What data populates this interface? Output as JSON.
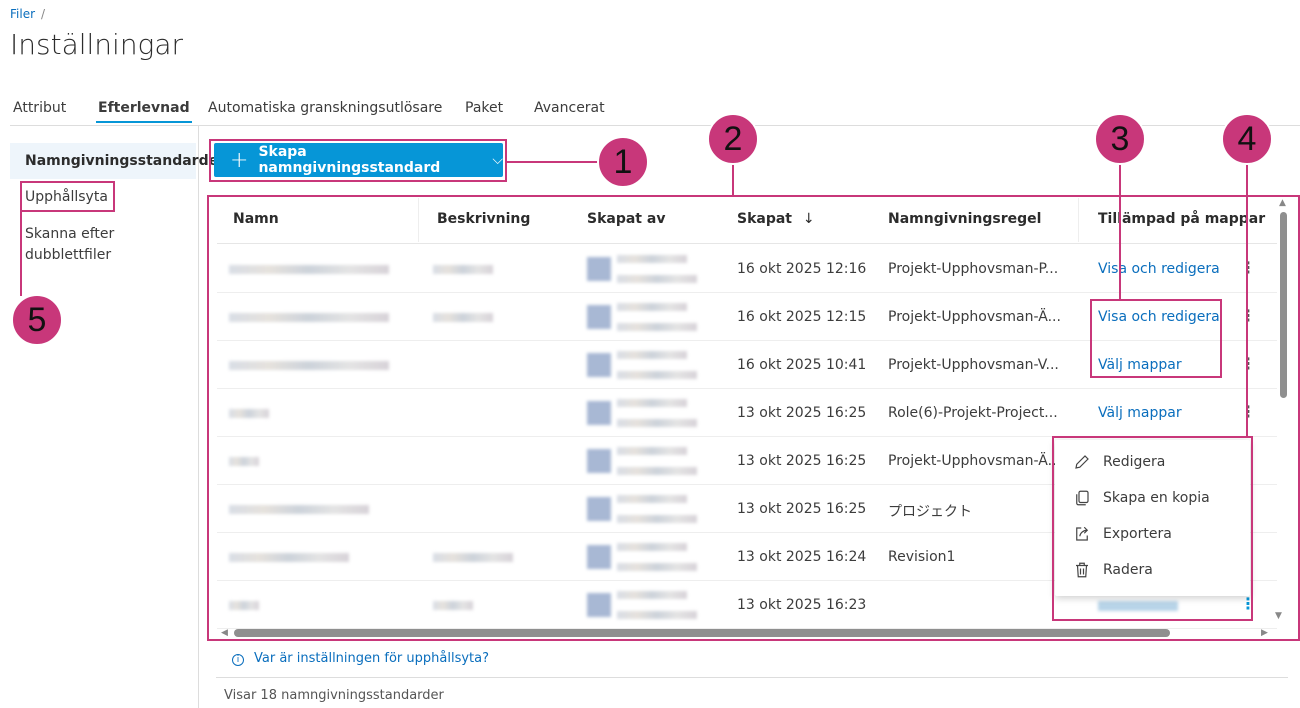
{
  "breadcrumb": {
    "root": "Filer",
    "sep": "/"
  },
  "title": "Inställningar",
  "tabs": [
    {
      "label": "Attribut"
    },
    {
      "label": "Efterlevnad",
      "active": true
    },
    {
      "label": "Automatiska granskningsutlösare"
    },
    {
      "label": "Paket"
    },
    {
      "label": "Avancerat"
    }
  ],
  "sidebar": {
    "items": [
      {
        "label": "Namngivningsstandarder",
        "active": true
      },
      {
        "label": "Upphållsyta"
      },
      {
        "label": "Skanna efter dubblettfiler"
      }
    ]
  },
  "create_button": {
    "label": "Skapa namngivningsstandard",
    "icon": "plus-icon",
    "chevron": "chevron-down-icon"
  },
  "table": {
    "columns": [
      "Namn",
      "Beskrivning",
      "Skapat av",
      "Skapat",
      "Namngivningsregel",
      "Tillämpad på mappar"
    ],
    "sort_indicator": "↓",
    "rows": [
      {
        "created": "16 okt 2025 12:16",
        "rule": "Projekt-Upphovsman-P...",
        "applied": "Visa och redigera",
        "desc": true
      },
      {
        "created": "16 okt 2025 12:15",
        "rule": "Projekt-Upphovsman-Ä...",
        "applied": "Visa och redigera",
        "desc": true
      },
      {
        "created": "16 okt 2025 10:41",
        "rule": "Projekt-Upphovsman-V...",
        "applied": "Välj mappar",
        "desc": false
      },
      {
        "created": "13 okt 2025 16:25",
        "rule": "Role(6)-Projekt-Project...",
        "applied": "Välj mappar",
        "desc": false
      },
      {
        "created": "13 okt 2025 16:25",
        "rule": "Projekt-Upphovsman-Ä...",
        "applied": "",
        "desc": false
      },
      {
        "created": "13 okt 2025 16:25",
        "rule": "プロジェクト",
        "applied": "",
        "desc": false
      },
      {
        "created": "13 okt 2025 16:24",
        "rule": "Revision1",
        "applied": "",
        "desc": true
      },
      {
        "created": "13 okt 2025 16:23",
        "rule": "",
        "applied": "",
        "desc": true
      }
    ]
  },
  "context_menu": {
    "items": [
      {
        "label": "Redigera",
        "icon": "pencil-icon"
      },
      {
        "label": "Skapa en kopia",
        "icon": "copy-icon"
      },
      {
        "label": "Exportera",
        "icon": "export-icon"
      },
      {
        "label": "Radera",
        "icon": "trash-icon"
      }
    ]
  },
  "info_link": "Var är inställningen för upphållsyta?",
  "footer": "Visar 18 namngivningsstandarder",
  "annotations": [
    "1",
    "2",
    "3",
    "4",
    "5"
  ],
  "colors": {
    "accent": "#0696d7",
    "link": "#0a6ebd",
    "annotation": "#c8377a"
  }
}
